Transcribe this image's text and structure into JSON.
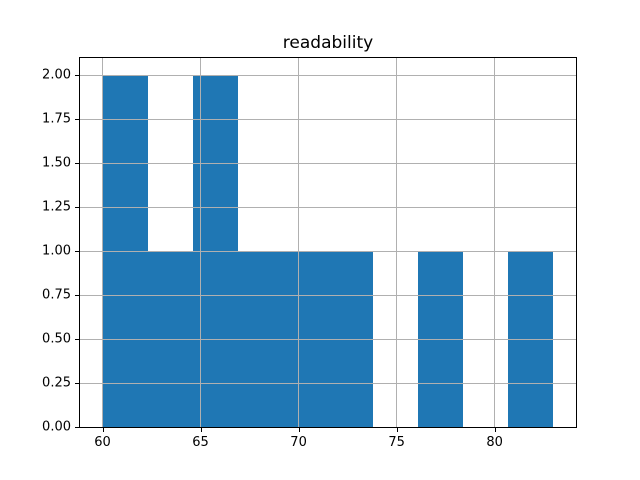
{
  "chart_data": {
    "type": "bar",
    "subtype": "histogram",
    "title": "readability",
    "xlabel": "",
    "ylabel": "",
    "bin_edges": [
      60.0,
      62.3,
      64.6,
      66.9,
      69.2,
      71.5,
      73.8,
      76.1,
      78.4,
      80.7,
      83.0
    ],
    "counts": [
      2,
      1,
      2,
      1,
      1,
      1,
      0,
      1,
      0,
      1
    ],
    "xlim": [
      58.85,
      84.15
    ],
    "ylim": [
      0,
      2.1
    ],
    "x_ticks": [
      60,
      65,
      70,
      75,
      80
    ],
    "x_tick_labels": [
      "60",
      "65",
      "70",
      "75",
      "80"
    ],
    "y_ticks": [
      0,
      0.25,
      0.5,
      0.75,
      1.0,
      1.25,
      1.5,
      1.75,
      2.0
    ],
    "y_tick_labels": [
      "0.00",
      "0.25",
      "0.50",
      "0.75",
      "1.00",
      "1.25",
      "1.50",
      "1.75",
      "2.00"
    ],
    "grid": true,
    "legend": null,
    "colors": {
      "bar": "#1f77b4",
      "grid": "#b0b0b0",
      "spine": "#000000",
      "background": "#ffffff",
      "text": "#000000"
    }
  }
}
